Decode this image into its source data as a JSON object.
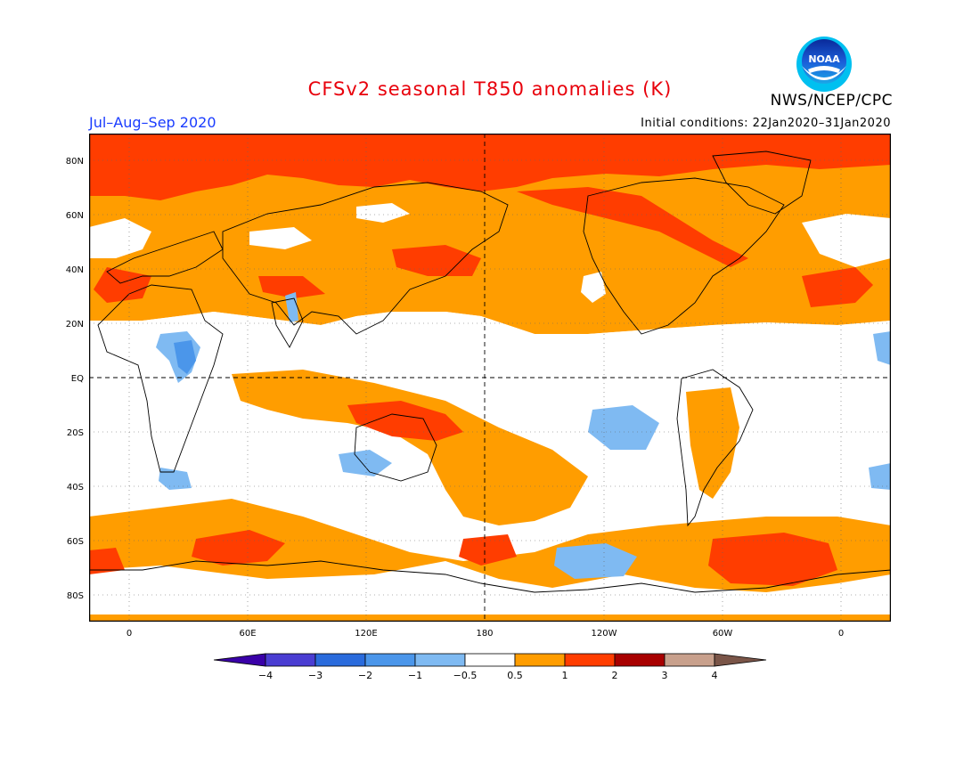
{
  "title": "CFSv2 seasonal T850 anomalies (K)",
  "season": "Jul–Aug–Sep 2020",
  "agency": "NWS/NCEP/CPC",
  "logo_text": "NOAA",
  "initial_conditions": "Initial conditions: 22Jan2020–31Jan2020",
  "colors": {
    "title": "#e8000b",
    "season": "#1a3cff",
    "neg4": "#3a00a8",
    "neg3": "#4a3dd2",
    "neg2": "#2a6bdc",
    "neg1": "#4b96ea",
    "neg05": "#7fbaf2",
    "neutral": "#ffffff",
    "pos05": "#ff9d00",
    "pos1": "#ff3d00",
    "pos2": "#a80000",
    "pos3": "#c8a08c",
    "pos4": "#7a5548"
  },
  "map": {
    "lat_labels": [
      "80N",
      "60N",
      "40N",
      "20N",
      "EQ",
      "20S",
      "40S",
      "60S",
      "80S"
    ],
    "lon_labels": [
      "0",
      "60E",
      "120E",
      "180",
      "120W",
      "60W",
      "0"
    ]
  },
  "colorbar": {
    "labels": [
      "−4",
      "−3",
      "−2",
      "−1",
      "−0.5",
      "0.5",
      "1",
      "2",
      "3",
      "4"
    ],
    "bins": [
      {
        "color": "#3a00a8"
      },
      {
        "color": "#4a3dd2"
      },
      {
        "color": "#2a6bdc"
      },
      {
        "color": "#4b96ea"
      },
      {
        "color": "#7fbaf2"
      },
      {
        "color": "#ffffff"
      },
      {
        "color": "#ff9d00"
      },
      {
        "color": "#ff3d00"
      },
      {
        "color": "#a80000"
      },
      {
        "color": "#c8a08c"
      },
      {
        "color": "#7a5548"
      }
    ]
  }
}
